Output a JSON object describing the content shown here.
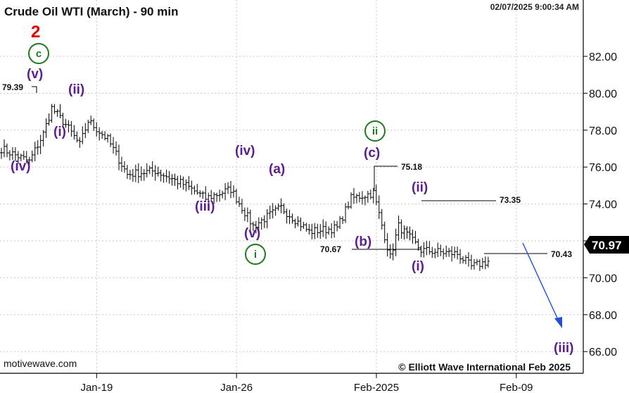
{
  "title": "Crude Oil WTI (March) - 90 min",
  "timestamp": "02/07/2025 9:00:34 AM",
  "watermark": "motivewave.com",
  "copyright": "© Elliott Wave International Feb 2025",
  "current_price": "70.97",
  "colors": {
    "wave_purple": "#5b1d8f",
    "wave_green": "#1d7a1d",
    "wave_red": "#e00000",
    "projection_arrow": "#1f4fe0",
    "price_tag_bg": "#000000"
  },
  "chart_data": {
    "type": "ohlc",
    "title": "Crude Oil WTI (March) - 90 min",
    "ylim": [
      64.5,
      84.0
    ],
    "y_ticks": [
      "66.00",
      "68.00",
      "70.00",
      "72.00",
      "74.00",
      "76.00",
      "78.00",
      "80.00",
      "82.00"
    ],
    "y_tick_values": [
      66,
      68,
      70,
      72,
      74,
      76,
      78,
      80,
      82
    ],
    "x_ticks": [
      "Jan-19",
      "Jan-26",
      "Feb-2025",
      "Feb-09"
    ],
    "x_tick_index": [
      26,
      76,
      126,
      176
    ],
    "grid": true,
    "path": [
      [
        0,
        77.0
      ],
      [
        10,
        76.3
      ],
      [
        15,
        77.8
      ],
      [
        18,
        79.2
      ],
      [
        23,
        78.3
      ],
      [
        28,
        77.2
      ],
      [
        31,
        78.5
      ],
      [
        38,
        77.5
      ],
      [
        45,
        75.6
      ],
      [
        55,
        75.8
      ],
      [
        66,
        75.0
      ],
      [
        73,
        74.3
      ],
      [
        82,
        74.8
      ],
      [
        90,
        72.8
      ],
      [
        100,
        73.8
      ],
      [
        110,
        72.5
      ],
      [
        120,
        72.7
      ],
      [
        125,
        74.3
      ],
      [
        133,
        74.6
      ],
      [
        139,
        71.1
      ],
      [
        142,
        72.8
      ],
      [
        150,
        71.5
      ],
      [
        163,
        71.3
      ],
      [
        168,
        70.6
      ],
      [
        174,
        70.9
      ]
    ],
    "levels": [
      {
        "label": "79.39",
        "value": 79.39
      },
      {
        "label": "75.18",
        "value": 75.18
      },
      {
        "label": "73.35",
        "value": 73.35
      },
      {
        "label": "70.67",
        "value": 70.67
      },
      {
        "label": "70.43",
        "value": 70.43
      }
    ],
    "annotations": {
      "red_2": "2",
      "green_c": "c",
      "v_top": "(v)",
      "ii_top": "(ii)",
      "iv_left": "(iv)",
      "i_left": "(i)",
      "iii_mid": "(iii)",
      "iv_mid": "(iv)",
      "a_mid": "(a)",
      "v_low": "(v)",
      "green_i": "i",
      "green_ii": "ii",
      "c_mid": "(c)",
      "b_mid": "(b)",
      "ii_right": "(ii)",
      "i_right": "(i)",
      "iii_target": "(iii)"
    }
  }
}
